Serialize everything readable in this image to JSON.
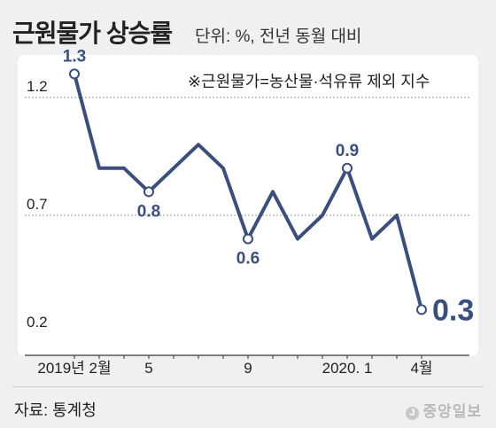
{
  "header": {
    "title": "근원물가 상승률",
    "subtitle": "단위: %, 전년 동월 대비"
  },
  "note": "※근원물가=농산물·석유류 제외 지수",
  "footer": {
    "source": "자료: 통계청",
    "brand": "중앙일보",
    "brand_mark": "J"
  },
  "colors": {
    "line": "#3b4e7c",
    "label": "#3b4e7c",
    "grid": "#9a9a9a",
    "axis": "#333333"
  },
  "chart_data": {
    "type": "line",
    "title": "근원물가 상승률",
    "ylim": [
      0.2,
      1.35
    ],
    "yticks": [
      {
        "value": 0.2,
        "label": "0.2"
      },
      {
        "value": 0.7,
        "label": "0.7"
      },
      {
        "value": 1.2,
        "label": "1.2"
      }
    ],
    "xtick_labels": [
      {
        "index": 0,
        "label": "2019년 2월"
      },
      {
        "index": 3,
        "label": "5"
      },
      {
        "index": 7,
        "label": "9"
      },
      {
        "index": 11,
        "label": "2020. 1"
      },
      {
        "index": 14,
        "label": "4월"
      }
    ],
    "values": [
      1.3,
      0.9,
      0.9,
      0.8,
      0.9,
      1.0,
      0.9,
      0.6,
      0.8,
      0.6,
      0.7,
      0.9,
      0.6,
      0.7,
      0.3
    ],
    "data_labels": [
      {
        "index": 0,
        "label": "1.3"
      },
      {
        "index": 3,
        "label": "0.8"
      },
      {
        "index": 7,
        "label": "0.6"
      },
      {
        "index": 11,
        "label": "0.9"
      },
      {
        "index": 14,
        "label": "0.3"
      }
    ]
  }
}
